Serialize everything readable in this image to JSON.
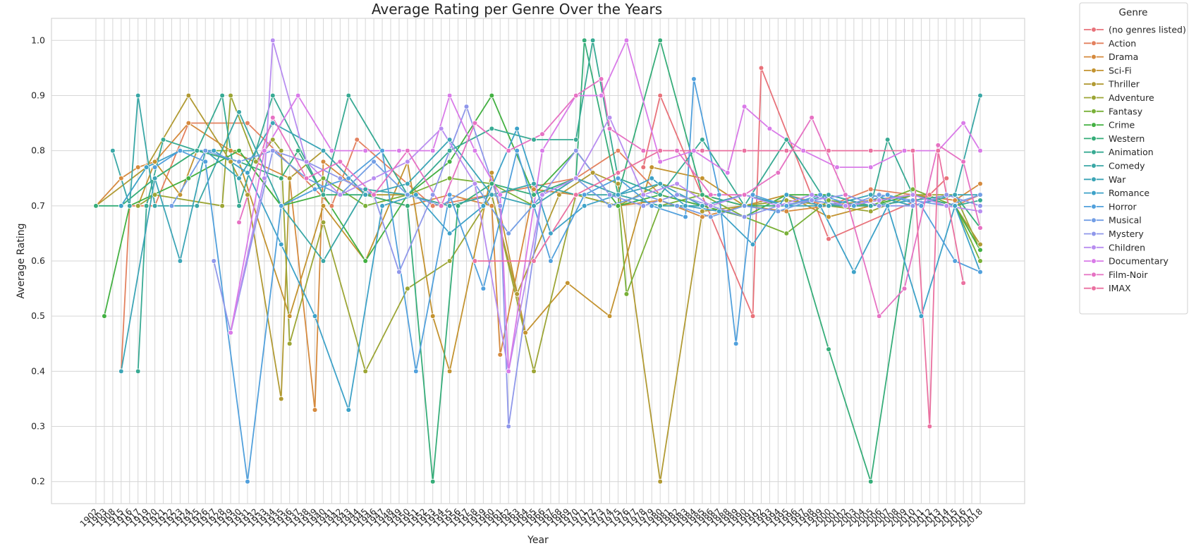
{
  "chart_data": {
    "type": "line",
    "title": "Average Rating per Genre Over the Years",
    "xlabel": "Year",
    "ylabel": "Average Rating",
    "ylim": [
      0.16,
      1.04
    ],
    "yticks": [
      0.2,
      0.3,
      0.4,
      0.5,
      0.6,
      0.7,
      0.8,
      0.9,
      1.0
    ],
    "ytick_labels": [
      "0.2",
      "0.3",
      "0.4",
      "0.5",
      "0.6",
      "0.7",
      "0.8",
      "0.9",
      "1.0"
    ],
    "x": [
      1902,
      1903,
      1908,
      1915,
      1916,
      1917,
      1919,
      1920,
      1921,
      1922,
      1923,
      1924,
      1925,
      1926,
      1927,
      1928,
      1929,
      1930,
      1931,
      1932,
      1933,
      1934,
      1935,
      1936,
      1937,
      1938,
      1939,
      1940,
      1941,
      1942,
      1943,
      1944,
      1945,
      1946,
      1947,
      1948,
      1949,
      1950,
      1951,
      1952,
      1953,
      1954,
      1955,
      1956,
      1957,
      1958,
      1959,
      1960,
      1961,
      1962,
      1963,
      1964,
      1965,
      1966,
      1967,
      1968,
      1969,
      1970,
      1971,
      1972,
      1973,
      1974,
      1975,
      1976,
      1977,
      1978,
      1979,
      1980,
      1981,
      1982,
      1983,
      1984,
      1985,
      1986,
      1987,
      1988,
      1989,
      1990,
      1991,
      1992,
      1993,
      1994,
      1995,
      1996,
      1997,
      1998,
      1999,
      2000,
      2001,
      2002,
      2003,
      2004,
      2005,
      2006,
      2007,
      2008,
      2009,
      2010,
      2011,
      2012,
      2013,
      2014,
      2015,
      2016,
      2017,
      2018
    ],
    "grid": true,
    "legend": {
      "title": "Genre",
      "placement": "outside-right",
      "entries": [
        "(no genres listed)",
        "Action",
        "Drama",
        "Sci-Fi",
        "Thriller",
        "Adventure",
        "Fantasy",
        "Crime",
        "Western",
        "Animation",
        "Comedy",
        "War",
        "Romance",
        "Horror",
        "Musical",
        "Mystery",
        "Children",
        "Documentary",
        "Film-Noir",
        "IMAX"
      ]
    },
    "series": [
      {
        "name": "(no genres listed)",
        "color": "#e8727a",
        "x": [
          1978,
          1980,
          1991,
          1992,
          2000,
          2012,
          2014
        ],
        "values": [
          0.77,
          0.9,
          0.5,
          0.95,
          0.64,
          0.72,
          0.75
        ]
      },
      {
        "name": "Action",
        "color": "#e3815f",
        "x": [
          1915,
          1916,
          1920,
          1924,
          1931,
          1941,
          1944,
          1953,
          1970,
          1975,
          1980,
          1985,
          1990,
          1995,
          2000,
          2005,
          2010,
          2015,
          2018
        ],
        "values": [
          0.4,
          0.7,
          0.7,
          0.85,
          0.85,
          0.7,
          0.82,
          0.7,
          0.75,
          0.8,
          0.72,
          0.7,
          0.68,
          0.72,
          0.7,
          0.73,
          0.72,
          0.7,
          0.72
        ]
      },
      {
        "name": "Drama",
        "color": "#d58a3e",
        "x": [
          1902,
          1915,
          1917,
          1920,
          1924,
          1929,
          1936,
          1939,
          1940,
          1945,
          1950,
          1955,
          1960,
          1961,
          1965,
          1970,
          1975,
          1980,
          1985,
          1990,
          1995,
          2000,
          2005,
          2010,
          2015,
          2018
        ],
        "values": [
          0.7,
          0.75,
          0.77,
          0.78,
          0.85,
          0.8,
          0.75,
          0.33,
          0.78,
          0.72,
          0.7,
          0.72,
          0.7,
          0.43,
          0.73,
          0.72,
          0.7,
          0.71,
          0.68,
          0.7,
          0.69,
          0.7,
          0.71,
          0.72,
          0.71,
          0.74
        ]
      },
      {
        "name": "Sci-Fi",
        "color": "#c39330",
        "x": [
          1917,
          1920,
          1923,
          1925,
          1930,
          1936,
          1940,
          1945,
          1950,
          1953,
          1955,
          1960,
          1964,
          1969,
          1974,
          1979,
          1985,
          1990,
          1995,
          2000,
          2005,
          2010,
          2015,
          2018
        ],
        "values": [
          0.7,
          0.78,
          0.72,
          0.8,
          0.78,
          0.5,
          0.7,
          0.6,
          0.78,
          0.5,
          0.4,
          0.76,
          0.47,
          0.56,
          0.5,
          0.77,
          0.75,
          0.7,
          0.72,
          0.68,
          0.7,
          0.72,
          0.7,
          0.62
        ]
      },
      {
        "name": "Thriller",
        "color": "#b19a33",
        "x": [
          1902,
          1919,
          1924,
          1929,
          1931,
          1935,
          1936,
          1940,
          1945,
          1950,
          1955,
          1960,
          1963,
          1968,
          1972,
          1975,
          1980,
          1985,
          1990,
          1995,
          2000,
          2005,
          2010,
          2015,
          2018
        ],
        "values": [
          0.7,
          0.77,
          0.9,
          0.78,
          0.72,
          0.35,
          0.75,
          0.8,
          0.72,
          0.72,
          0.7,
          0.72,
          0.54,
          0.72,
          0.76,
          0.74,
          0.2,
          0.69,
          0.7,
          0.71,
          0.7,
          0.7,
          0.72,
          0.7,
          0.63
        ]
      },
      {
        "name": "Adventure",
        "color": "#9ca535",
        "x": [
          1917,
          1920,
          1928,
          1929,
          1932,
          1934,
          1935,
          1936,
          1940,
          1945,
          1950,
          1955,
          1960,
          1965,
          1970,
          1975,
          1980,
          1985,
          1990,
          1995,
          2000,
          2005,
          2010,
          2015,
          2018
        ],
        "values": [
          0.7,
          0.72,
          0.7,
          0.9,
          0.78,
          0.82,
          0.8,
          0.45,
          0.67,
          0.4,
          0.55,
          0.6,
          0.72,
          0.4,
          0.72,
          0.7,
          0.74,
          0.72,
          0.7,
          0.71,
          0.7,
          0.69,
          0.72,
          0.72,
          0.62
        ]
      },
      {
        "name": "Fantasy",
        "color": "#79b038",
        "x": [
          1920,
          1925,
          1930,
          1935,
          1940,
          1945,
          1950,
          1955,
          1960,
          1965,
          1970,
          1975,
          1976,
          1980,
          1985,
          1990,
          1995,
          2000,
          2005,
          2010,
          2015,
          2018
        ],
        "values": [
          0.75,
          0.8,
          0.8,
          0.7,
          0.75,
          0.7,
          0.72,
          0.75,
          0.74,
          0.7,
          0.75,
          0.72,
          0.54,
          0.7,
          0.72,
          0.68,
          0.65,
          0.71,
          0.7,
          0.73,
          0.7,
          0.6
        ]
      },
      {
        "name": "Crime",
        "color": "#43b042",
        "x": [
          1903,
          1916,
          1924,
          1930,
          1935,
          1940,
          1945,
          1950,
          1955,
          1960,
          1965,
          1970,
          1975,
          1980,
          1985,
          1990,
          1995,
          2000,
          2005,
          2010,
          2015,
          2018
        ],
        "values": [
          0.5,
          0.7,
          0.75,
          0.8,
          0.7,
          0.72,
          0.6,
          0.72,
          0.78,
          0.9,
          0.72,
          0.8,
          0.7,
          0.72,
          0.7,
          0.68,
          0.72,
          0.72,
          0.7,
          0.72,
          0.7,
          0.62
        ]
      },
      {
        "name": "Western",
        "color": "#36ad79",
        "x": [
          1902,
          1915,
          1920,
          1925,
          1930,
          1935,
          1937,
          1940,
          1945,
          1950,
          1953,
          1956,
          1960,
          1965,
          1970,
          1971,
          1975,
          1980,
          1985,
          1990,
          1995,
          2000,
          2005,
          2010,
          2015,
          2018
        ],
        "values": [
          0.7,
          0.7,
          0.75,
          0.8,
          0.78,
          0.75,
          0.8,
          0.72,
          0.72,
          0.7,
          0.2,
          0.7,
          0.74,
          0.72,
          0.75,
          1.0,
          0.72,
          1.0,
          0.72,
          0.7,
          0.7,
          0.44,
          0.2,
          0.7,
          0.72,
          0.66
        ]
      },
      {
        "name": "Animation",
        "color": "#38aa93",
        "x": [
          1917,
          1919,
          1921,
          1925,
          1928,
          1930,
          1934,
          1940,
          1943,
          1950,
          1955,
          1960,
          1965,
          1970,
          1972,
          1975,
          1980,
          1985,
          1990,
          1995,
          2000,
          2005,
          2007,
          2010,
          2015,
          2018
        ],
        "values": [
          0.4,
          0.7,
          0.82,
          0.8,
          0.9,
          0.7,
          0.9,
          0.72,
          0.9,
          0.72,
          0.8,
          0.84,
          0.82,
          0.82,
          1.0,
          0.75,
          0.72,
          0.82,
          0.7,
          0.82,
          0.7,
          0.7,
          0.82,
          0.72,
          0.7,
          0.71
        ]
      },
      {
        "name": "Comedy",
        "color": "#3aa7a6",
        "x": [
          1908,
          1916,
          1917,
          1920,
          1925,
          1930,
          1935,
          1940,
          1945,
          1950,
          1955,
          1960,
          1965,
          1970,
          1975,
          1980,
          1985,
          1990,
          1995,
          2000,
          2005,
          2010,
          2015,
          2018
        ],
        "values": [
          0.8,
          0.7,
          0.9,
          0.7,
          0.7,
          0.87,
          0.7,
          0.6,
          0.73,
          0.72,
          0.7,
          0.72,
          0.74,
          0.72,
          0.72,
          0.7,
          0.7,
          0.72,
          0.7,
          0.72,
          0.7,
          0.71,
          0.72,
          0.9
        ]
      },
      {
        "name": "War",
        "color": "#3ca5b6",
        "x": [
          1915,
          1920,
          1923,
          1926,
          1930,
          1934,
          1940,
          1945,
          1950,
          1955,
          1960,
          1965,
          1970,
          1975,
          1980,
          1985,
          1990,
          1995,
          2000,
          2005,
          2010,
          2015,
          2018
        ],
        "values": [
          0.4,
          0.75,
          0.6,
          0.8,
          0.75,
          0.85,
          0.8,
          0.72,
          0.74,
          0.82,
          0.72,
          0.7,
          0.75,
          0.72,
          0.74,
          0.7,
          0.72,
          0.7,
          0.7,
          0.72,
          0.7,
          0.72,
          0.72
        ]
      },
      {
        "name": "Romance",
        "color": "#3ea2c8",
        "x": [
          1915,
          1919,
          1923,
          1927,
          1931,
          1935,
          1939,
          1943,
          1947,
          1951,
          1955,
          1959,
          1963,
          1967,
          1971,
          1975,
          1979,
          1983,
          1987,
          1991,
          1995,
          1999,
          2003,
          2007,
          2011,
          2015,
          2018
        ],
        "values": [
          0.7,
          0.77,
          0.8,
          0.8,
          0.76,
          0.63,
          0.5,
          0.33,
          0.7,
          0.72,
          0.65,
          0.7,
          0.84,
          0.65,
          0.7,
          0.72,
          0.75,
          0.7,
          0.69,
          0.63,
          0.72,
          0.7,
          0.58,
          0.7,
          0.5,
          0.7,
          0.58
        ]
      },
      {
        "name": "Horror",
        "color": "#51a0dc",
        "x": [
          1920,
          1923,
          1926,
          1931,
          1935,
          1939,
          1943,
          1947,
          1951,
          1955,
          1959,
          1963,
          1967,
          1971,
          1975,
          1979,
          1983,
          1984,
          1987,
          1989,
          1991,
          1995,
          1999,
          2003,
          2007,
          2011,
          2015,
          2018
        ],
        "values": [
          0.77,
          0.8,
          0.78,
          0.2,
          0.7,
          0.73,
          0.75,
          0.8,
          0.4,
          0.72,
          0.55,
          0.8,
          0.6,
          0.72,
          0.75,
          0.7,
          0.68,
          0.93,
          0.72,
          0.45,
          0.72,
          0.7,
          0.72,
          0.7,
          0.72,
          0.7,
          0.6,
          0.58
        ]
      },
      {
        "name": "Musical",
        "color": "#739ee5",
        "x": [
          1922,
          1926,
          1930,
          1934,
          1938,
          1942,
          1946,
          1950,
          1954,
          1958,
          1962,
          1966,
          1970,
          1974,
          1978,
          1982,
          1986,
          1990,
          1994,
          1998,
          2002,
          2006,
          2010,
          2014,
          2018
        ],
        "values": [
          0.7,
          0.8,
          0.78,
          0.8,
          0.75,
          0.72,
          0.78,
          0.72,
          0.7,
          0.74,
          0.65,
          0.72,
          0.75,
          0.7,
          0.72,
          0.7,
          0.68,
          0.7,
          0.69,
          0.71,
          0.7,
          0.72,
          0.71,
          0.7,
          0.72
        ]
      },
      {
        "name": "Mystery",
        "color": "#8f97ea",
        "x": [
          1927,
          1929,
          1934,
          1938,
          1942,
          1946,
          1949,
          1953,
          1957,
          1961,
          1962,
          1966,
          1970,
          1974,
          1978,
          1982,
          1986,
          1990,
          1994,
          1998,
          2002,
          2006,
          2010,
          2014,
          2018
        ],
        "values": [
          0.6,
          0.47,
          0.8,
          0.78,
          0.75,
          0.72,
          0.58,
          0.72,
          0.88,
          0.7,
          0.3,
          0.72,
          0.8,
          0.72,
          0.7,
          0.72,
          0.7,
          0.68,
          0.7,
          0.71,
          0.72,
          0.7,
          0.7,
          0.72,
          0.7
        ]
      },
      {
        "name": "Children",
        "color": "#b88df0",
        "x": [
          1929,
          1933,
          1934,
          1938,
          1942,
          1946,
          1950,
          1954,
          1958,
          1962,
          1966,
          1970,
          1974,
          1978,
          1982,
          1986,
          1990,
          1994,
          1998,
          2002,
          2006,
          2010,
          2014,
          2018
        ],
        "values": [
          0.47,
          0.75,
          1.0,
          0.78,
          0.72,
          0.75,
          0.78,
          0.84,
          0.74,
          0.4,
          0.72,
          0.75,
          0.86,
          0.72,
          0.74,
          0.7,
          0.72,
          0.7,
          0.72,
          0.7,
          0.71,
          0.72,
          0.7,
          0.69
        ]
      },
      {
        "name": "Documentary",
        "color": "#d97be8",
        "x": [
          1929,
          1933,
          1937,
          1941,
          1945,
          1949,
          1953,
          1955,
          1958,
          1961,
          1962,
          1966,
          1970,
          1973,
          1976,
          1980,
          1984,
          1988,
          1990,
          1993,
          1997,
          2001,
          2005,
          2009,
          2013,
          2016,
          2018
        ],
        "values": [
          0.47,
          0.8,
          0.9,
          0.8,
          0.8,
          0.8,
          0.8,
          0.9,
          0.8,
          0.72,
          0.4,
          0.8,
          0.9,
          0.9,
          1.0,
          0.78,
          0.8,
          0.76,
          0.88,
          0.84,
          0.8,
          0.77,
          0.77,
          0.8,
          0.8,
          0.85,
          0.8
        ]
      },
      {
        "name": "Film-Noir",
        "color": "#e672c3",
        "x": [
          1930,
          1934,
          1938,
          1942,
          1946,
          1950,
          1954,
          1958,
          1962,
          1966,
          1970,
          1973,
          1974,
          1978,
          1982,
          1986,
          1990,
          1994,
          1998,
          2002,
          2006,
          2009,
          2013,
          2016,
          2018
        ],
        "values": [
          0.67,
          0.86,
          0.75,
          0.78,
          0.72,
          0.8,
          0.7,
          0.85,
          0.8,
          0.83,
          0.9,
          0.93,
          0.84,
          0.8,
          0.8,
          0.72,
          0.72,
          0.76,
          0.86,
          0.72,
          0.5,
          0.55,
          0.81,
          0.78,
          0.66
        ]
      },
      {
        "name": "IMAX",
        "color": "#ea71a0",
        "x": [
          1958,
          1965,
          1970,
          1975,
          1980,
          1985,
          1990,
          1995,
          2000,
          2005,
          2010,
          2012,
          2013,
          2016
        ],
        "values": [
          0.6,
          0.6,
          0.72,
          0.76,
          0.8,
          0.8,
          0.8,
          0.8,
          0.8,
          0.8,
          0.8,
          0.3,
          0.8,
          0.56
        ]
      }
    ]
  }
}
